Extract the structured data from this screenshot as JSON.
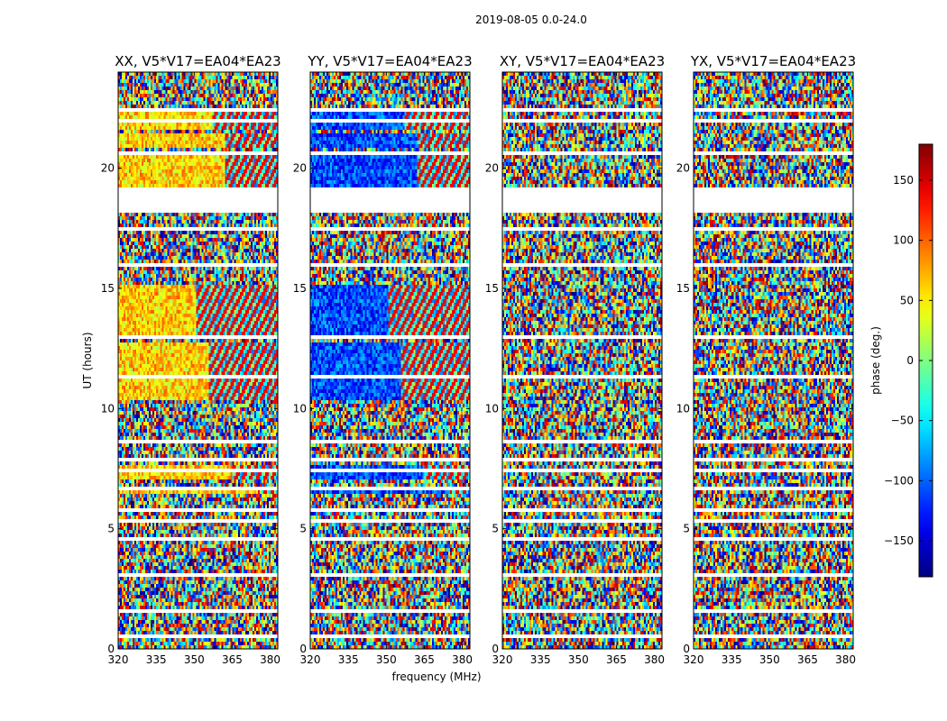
{
  "figure": {
    "suptitle": "2019-08-05 0.0-24.0",
    "xlabel": "frequency (MHz)",
    "ylabel": "UT (hours)",
    "colorbar_label": "phase (deg.)"
  },
  "chart_data": {
    "type": "heatmap",
    "colormap": "jet",
    "color_range": [
      -180,
      180
    ],
    "colorbar_ticks": [
      150,
      100,
      50,
      0,
      -50,
      -100,
      -150
    ],
    "xlim": [
      320,
      383
    ],
    "ylim": [
      0,
      24
    ],
    "x_ticks": [
      320,
      335,
      350,
      365,
      380
    ],
    "y_ticks": [
      0,
      5,
      10,
      15,
      20
    ],
    "panels": [
      {
        "title": "XX, V5*V17=EA04*EA23",
        "mean_phase": 60
      },
      {
        "title": "YY, V5*V17=EA04*EA23",
        "mean_phase": -110
      },
      {
        "title": "XY, V5*V17=EA04*EA23",
        "mean_phase": null
      },
      {
        "title": "YX, V5*V17=EA04*EA23",
        "mean_phase": null
      }
    ],
    "flagged_hours": [
      [
        0.5,
        0.55
      ],
      [
        0.9,
        0.95
      ],
      [
        1.45,
        1.6
      ],
      [
        1.75,
        1.85
      ],
      [
        2.2,
        2.25
      ],
      [
        2.65,
        2.7
      ],
      [
        3.05,
        3.1
      ],
      [
        3.4,
        3.45
      ],
      [
        3.55,
        3.6
      ],
      [
        3.9,
        3.95
      ],
      [
        4.2,
        4.25
      ],
      [
        4.5,
        4.65
      ],
      [
        5.3,
        5.35
      ],
      [
        5.75,
        5.8
      ],
      [
        6.3,
        6.35
      ],
      [
        6.6,
        6.7
      ],
      [
        7.4,
        7.45
      ],
      [
        7.8,
        7.95
      ],
      [
        8.25,
        8.3
      ],
      [
        8.6,
        8.65
      ],
      [
        9.0,
        9.05
      ],
      [
        9.4,
        9.45
      ],
      [
        9.85,
        9.9
      ],
      [
        10.2,
        10.25
      ],
      [
        11.3,
        11.35
      ],
      [
        12.85,
        13.1
      ],
      [
        14.35,
        14.4
      ],
      [
        14.85,
        14.9
      ],
      [
        15.55,
        15.6
      ],
      [
        15.95,
        16.05
      ],
      [
        16.9,
        16.95
      ],
      [
        17.45,
        17.5
      ],
      [
        17.8,
        17.85
      ],
      [
        18.2,
        19.0
      ],
      [
        19.1,
        19.15
      ],
      [
        19.6,
        19.7
      ],
      [
        20.05,
        20.15
      ],
      [
        20.6,
        20.75
      ],
      [
        21.0,
        21.05
      ],
      [
        21.55,
        21.6
      ],
      [
        21.95,
        22.0
      ],
      [
        22.35,
        22.55
      ],
      [
        23.35,
        23.4
      ]
    ],
    "coherent_hours": [
      {
        "range": [
          10.3,
          12.8
        ],
        "break_mhz": 356
      },
      {
        "range": [
          13.1,
          15.2
        ],
        "break_mhz": 351
      },
      {
        "range": [
          19.2,
          20.5
        ],
        "break_mhz": 362
      },
      {
        "range": [
          20.8,
          21.5
        ],
        "break_mhz": 362
      },
      {
        "range": [
          21.6,
          22.3
        ],
        "break_mhz": 357
      },
      {
        "range": [
          6.4,
          6.6
        ],
        "break_mhz": 375
      },
      {
        "range": [
          7.0,
          7.7
        ],
        "break_mhz": 365
      }
    ]
  }
}
